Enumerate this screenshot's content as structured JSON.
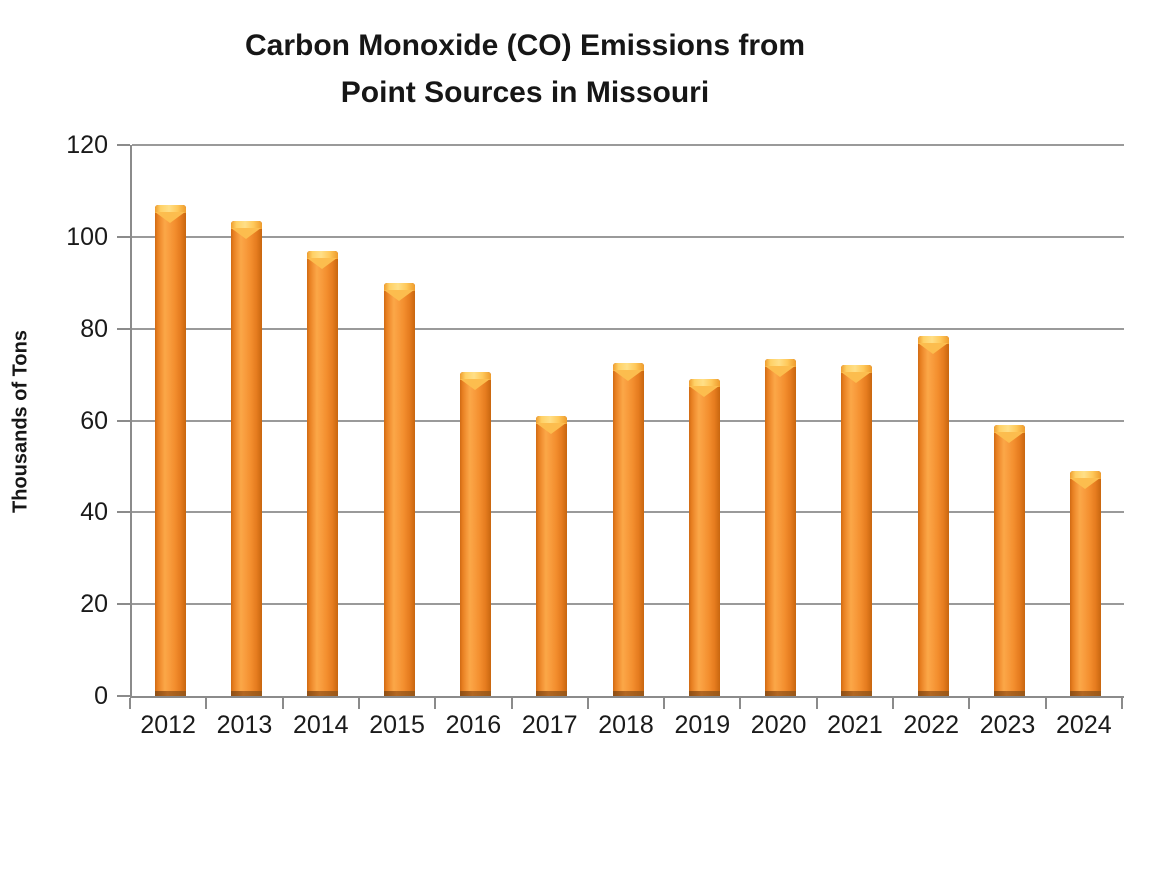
{
  "title": {
    "line1": "Carbon Monoxide (CO) Emissions from",
    "line2": "Point Sources in Missouri"
  },
  "chart_data": {
    "type": "bar",
    "title": "Carbon Monoxide (CO) Emissions from Point Sources in Missouri",
    "categories": [
      "2012",
      "2013",
      "2014",
      "2015",
      "2016",
      "2017",
      "2018",
      "2019",
      "2020",
      "2021",
      "2022",
      "2023",
      "2024"
    ],
    "values": [
      107,
      103.5,
      97,
      90,
      70.5,
      61,
      72.5,
      69,
      73.5,
      72,
      78.5,
      59,
      49
    ],
    "xlabel": "",
    "ylabel": "Thousands of Tons",
    "ylim": [
      0,
      120
    ],
    "yticks": [
      0,
      20,
      40,
      60,
      80,
      100,
      120
    ],
    "grid": true,
    "legend": "none",
    "bar_color": "#F79233",
    "bar_cap_color": "#FFCE63",
    "bar_foot_color": "#9A5717",
    "axis_color": "#8B8B8B",
    "gridline_color": "#9A9A9A",
    "title_color": "#161616"
  }
}
